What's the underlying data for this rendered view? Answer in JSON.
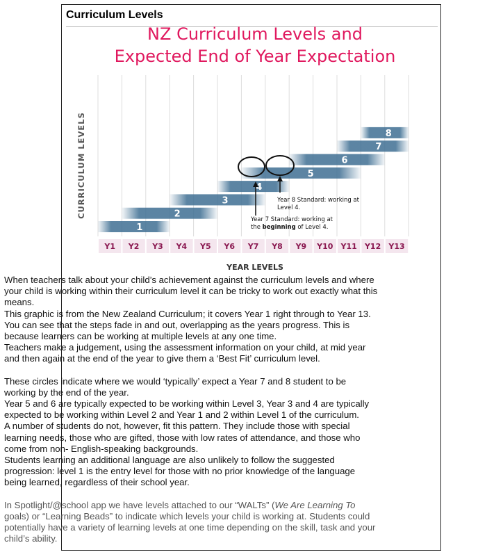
{
  "doc": {
    "title": "Curriculum Levels"
  },
  "figure": {
    "title_line1": "NZ Curriculum Levels and",
    "title_line2": "Expected End of Year Expectation",
    "annotations": {
      "y8_line1": "Year 8 Standard: working at",
      "y8_line2": "Level 4.",
      "y7_line1": "Year 7 Standard: working at",
      "y7_line2_pre": "the ",
      "y7_line2_bold": "beginning",
      "y7_line2_post": " of Level 4."
    }
  },
  "chart_data": {
    "type": "bar",
    "title": "NZ Curriculum Levels and Expected End of Year Expectation",
    "xlabel": "YEAR LEVELS",
    "ylabel": "CURRICULUM LEVELS",
    "categories": [
      "Y1",
      "Y2",
      "Y3",
      "Y4",
      "Y5",
      "Y6",
      "Y7",
      "Y8",
      "Y9",
      "Y10",
      "Y11",
      "Y12",
      "Y13"
    ],
    "series": [
      {
        "name": "1",
        "start": 0,
        "end": 3
      },
      {
        "name": "2",
        "start": 1,
        "end": 5
      },
      {
        "name": "3",
        "start": 3,
        "end": 7
      },
      {
        "name": "4",
        "start": 5,
        "end": 8
      },
      {
        "name": "5",
        "start": 6,
        "end": 11
      },
      {
        "name": "6",
        "start": 8,
        "end": 12
      },
      {
        "name": "7",
        "start": 10,
        "end": 13
      },
      {
        "name": "8",
        "start": 11,
        "end": 13
      }
    ],
    "colors": {
      "bar": "#3f6f93",
      "tick_bg": "#f4e6ee",
      "tick_text": "#8a1850",
      "title": "#e0185e"
    }
  },
  "text": {
    "p1": "When teachers talk about your child’s achievement against the curriculum levels and where your child is working within their curriculum level it can be tricky to work out exactly what this means.",
    "p2": "This graphic is from the New Zealand Curriculum; it covers Year 1 right through to Year 13. You can see that the steps fade in and out, overlapping as the years progress. This is because learners can be working at multiple levels at any one time.",
    "p3": "Teachers make a judgement, using the assessment information on your child, at mid year and then again at the end of the year to give them a ‘Best Fit’ curriculum level.",
    "p4": "These circles indicate where we would ‘typically’ expect a Year 7 and 8 student to be working by the end of the year.",
    "p5": "Year 5 and 6 are typically expected to be working within Level 3, Year 3 and 4 are typically expected to be working within Level 2 and Year 1 and 2 within Level 1 of the curriculum.",
    "p6": "A number of students do not, however, fit this pattern. They include those with special learning needs, those who are gifted, those with low rates of attendance, and those who come from non- English-speaking backgrounds.",
    "p7": "Students learning an additional language are also unlikely to follow the suggested progression: level 1 is the entry level for those with no prior knowledge of the language being learned, regardless of their school year.",
    "p8_pre": "In Spotlight/@school app we have levels attached to our “WALTs” (",
    "p8_italic": "We Are Learning To",
    "p8_post": " goals) or “Learning Beads” to indicate which levels your child is working at. Students could potentially have a variety of learning levels at one time depending on the skill, task and your child’s ability."
  }
}
